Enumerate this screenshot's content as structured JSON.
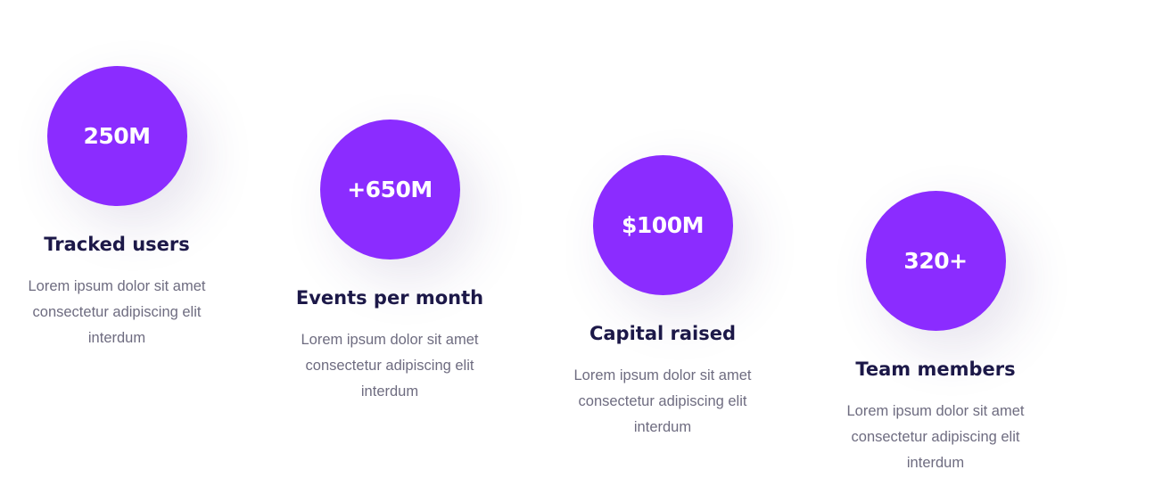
{
  "stats": [
    {
      "value": "250M",
      "title": "Tracked users",
      "description": "Lorem ipsum dolor sit amet consectetur adipiscing elit interdum"
    },
    {
      "value": "+650M",
      "title": "Events per month",
      "description": "Lorem ipsum dolor sit amet consectetur adipiscing elit interdum"
    },
    {
      "value": "$100M",
      "title": "Capital raised",
      "description": "Lorem ipsum dolor sit amet consectetur adipiscing elit interdum"
    },
    {
      "value": "320+",
      "title": "Team members",
      "description": "Lorem ipsum dolor sit amet consectetur adipiscing elit interdum"
    }
  ],
  "colors": {
    "accent": "#8b2cff",
    "heading": "#1c1848",
    "body_text": "#6e6c80",
    "background": "#ffffff"
  }
}
